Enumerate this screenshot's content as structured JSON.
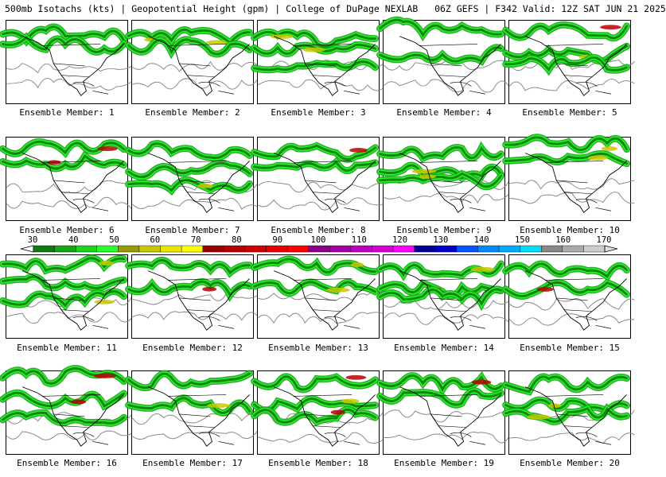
{
  "header": {
    "title": "500mb Isotachs (kts) | Geopotential Height (gpm) | College of DuPage NEXLAB",
    "run": "06Z GEFS | F342 Valid: 12Z SAT JUN 21 2025"
  },
  "colorbar": {
    "ticks": [
      "30",
      "40",
      "50",
      "60",
      "70",
      "80",
      "90",
      "100",
      "110",
      "120",
      "130",
      "140",
      "150",
      "160",
      "170"
    ],
    "colors": [
      "#0f7a0f",
      "#15a515",
      "#1ad31a",
      "#26ff26",
      "#999900",
      "#c8c800",
      "#e6e600",
      "#ffff00",
      "#9b0000",
      "#b80000",
      "#d00000",
      "#e80000",
      "#ff0000",
      "#8b0089",
      "#a400a4",
      "#bd00bd",
      "#d600d6",
      "#ff00ff",
      "#000099",
      "#0000cc",
      "#0055ff",
      "#0088ff",
      "#00aaff",
      "#00ddff",
      "#888888",
      "#aaaaaa",
      "#cccccc"
    ]
  },
  "members": [
    "Ensemble Member: 1",
    "Ensemble Member: 2",
    "Ensemble Member: 3",
    "Ensemble Member: 4",
    "Ensemble Member: 5",
    "Ensemble Member: 6",
    "Ensemble Member: 7",
    "Ensemble Member: 8",
    "Ensemble Member: 9",
    "Ensemble Member: 10",
    "Ensemble Member: 11",
    "Ensemble Member: 12",
    "Ensemble Member: 13",
    "Ensemble Member: 14",
    "Ensemble Member: 15",
    "Ensemble Member: 16",
    "Ensemble Member: 17",
    "Ensemble Member: 18",
    "Ensemble Member: 19",
    "Ensemble Member: 20"
  ]
}
